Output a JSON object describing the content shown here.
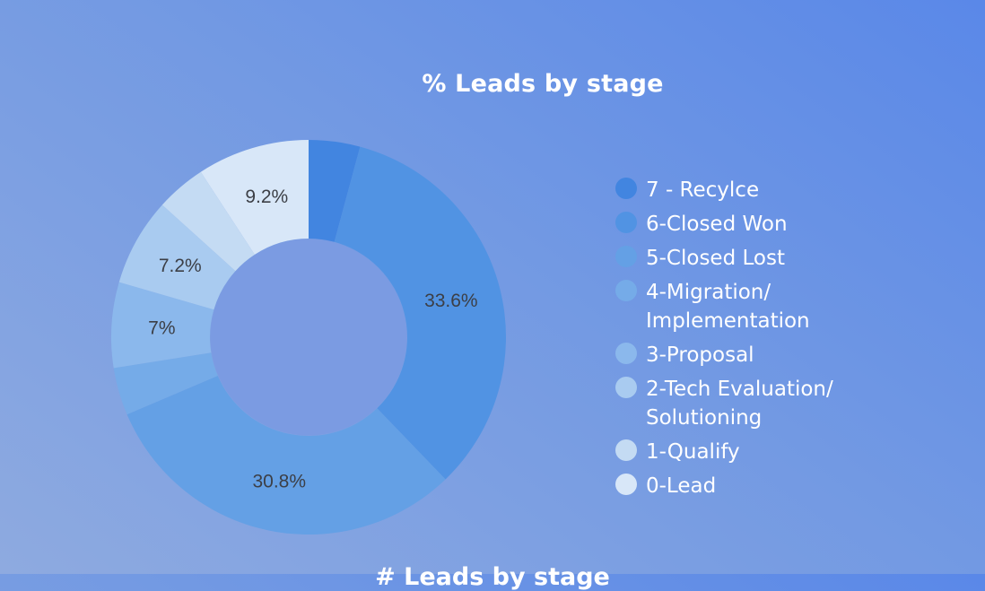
{
  "chart_data": {
    "type": "pie",
    "title": "% Leads by stage",
    "categories": [
      "7 - Recylce",
      "6-Closed Won",
      "5-Closed Lost",
      "4-Migration/ Implementation",
      "3-Proposal",
      "2-Tech Evaluation/ Solutioning",
      "1-Qualify",
      "0-Lead"
    ],
    "values": [
      4.2,
      33.6,
      30.8,
      3.9,
      7.0,
      7.2,
      4.1,
      9.2
    ],
    "data_labels": [
      "",
      "33.6%",
      "30.8%",
      "",
      "7%",
      "7.2%",
      "",
      "9.2%"
    ],
    "colors": [
      "#4285e0",
      "#5193e3",
      "#64a0e5",
      "#75abe8",
      "#8bb8ec",
      "#a9cbf0",
      "#c4dbf3",
      "#d8e7f8"
    ],
    "donut": true,
    "legend_position": "right"
  },
  "next_section": {
    "title": "# Leads by stage"
  }
}
